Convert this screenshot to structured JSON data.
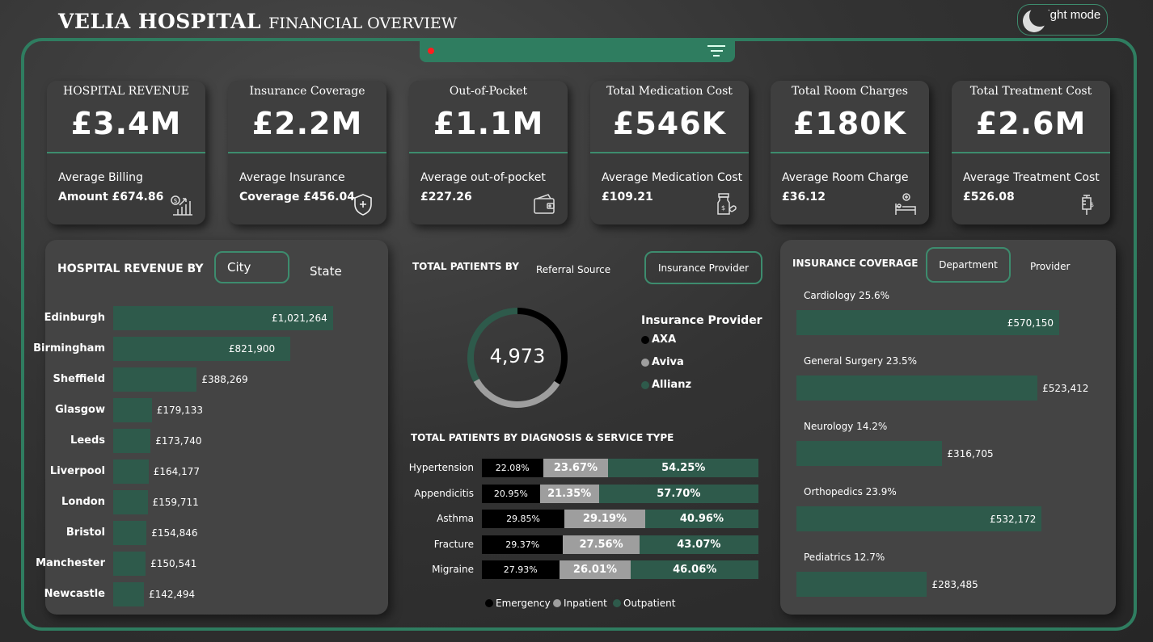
{
  "header": {
    "title_main": "VELIA HOSPITAL",
    "title_sub": "FINANCIAL OVERVIEW",
    "mode_label": "Light mode"
  },
  "colors": {
    "accent": "#2f7d60",
    "bar": "#2e5a4b",
    "emergency": "#000000",
    "inpatient": "#9e9e9e",
    "outpatient": "#2e5a4b"
  },
  "kpis": [
    {
      "label": "HOSPITAL REVENUE",
      "value": "£3.4M",
      "sub1": "Average Billing",
      "sub2": "Amount £674.86",
      "icon": "revenue-growth-icon"
    },
    {
      "label": "Insurance Coverage",
      "value": "£2.2M",
      "sub1": "Average Insurance",
      "sub2": "Coverage £456.04",
      "icon": "shield-plus-icon"
    },
    {
      "label": "Out-of-Pocket",
      "value": "£1.1M",
      "sub1": "Average out-of-pocket",
      "sub2": "£227.26",
      "icon": "wallet-icon"
    },
    {
      "label": "Total Medication Cost",
      "value": "£546K",
      "sub1": "Average Medication Cost",
      "sub2": "£109.21",
      "icon": "medicine-bottle-icon"
    },
    {
      "label": "Total Room Charges",
      "value": "£180K",
      "sub1": "Average Room Charge",
      "sub2": "£36.12",
      "icon": "hospital-bed-icon"
    },
    {
      "label": "Total Treatment Cost",
      "value": "£2.6M",
      "sub1": "Average Treatment Cost",
      "sub2": "£526.08",
      "icon": "syringe-icon"
    }
  ],
  "revenue": {
    "title": "HOSPITAL REVENUE BY",
    "toggle_active": "City",
    "toggle_other": "State"
  },
  "patients": {
    "title": "TOTAL PATIENTS BY",
    "toggle_other": "Referral Source",
    "toggle_active": "Insurance Provider",
    "total": "4,973",
    "legend_title": "Insurance Provider",
    "legend": [
      "AXA",
      "Aviva",
      "Allianz"
    ]
  },
  "diagnosis": {
    "title": "TOTAL PATIENTS BY DIAGNOSIS & SERVICE TYPE",
    "legend": [
      "Emergency",
      "Inpatient",
      "Outpatient"
    ]
  },
  "insurance": {
    "title": "INSURANCE COVERAGE",
    "toggle_active": "Department",
    "toggle_other": "Provider"
  },
  "chart_data": [
    {
      "type": "bar",
      "title": "HOSPITAL REVENUE BY City",
      "categories": [
        "Edinburgh",
        "Birmingham",
        "Sheffield",
        "Glasgow",
        "Leeds",
        "Liverpool",
        "London",
        "Bristol",
        "Manchester",
        "Newcastle"
      ],
      "values": [
        1021264,
        821900,
        388269,
        179133,
        173740,
        164177,
        159711,
        154846,
        150541,
        142494
      ],
      "labels": [
        "£1,021,264",
        "£821,900",
        "£388,269",
        "£179,133",
        "£173,740",
        "£164,177",
        "£159,711",
        "£154,846",
        "£150,541",
        "£142,494"
      ]
    },
    {
      "type": "pie",
      "title": "TOTAL PATIENTS BY Insurance Provider",
      "total": 4973,
      "categories": [
        "AXA",
        "Aviva",
        "Allianz"
      ],
      "values": [
        34,
        33,
        33
      ]
    },
    {
      "type": "bar",
      "title": "TOTAL PATIENTS BY DIAGNOSIS & SERVICE TYPE",
      "categories": [
        "Hypertension",
        "Appendicitis",
        "Asthma",
        "Fracture",
        "Migraine"
      ],
      "series": [
        {
          "name": "Emergency",
          "values": [
            22.08,
            20.95,
            29.85,
            29.37,
            27.93
          ],
          "labels": [
            "22.08%",
            "20.95%",
            "29.85%",
            "29.37%",
            "27.93%"
          ]
        },
        {
          "name": "Inpatient",
          "values": [
            23.67,
            21.35,
            29.19,
            27.56,
            26.01
          ],
          "labels": [
            "23.67%",
            "21.35%",
            "29.19%",
            "27.56%",
            "26.01%"
          ]
        },
        {
          "name": "Outpatient",
          "values": [
            54.25,
            57.7,
            40.96,
            43.07,
            46.06
          ],
          "labels": [
            "54.25%",
            "57.70%",
            "40.96%",
            "43.07%",
            "46.06%"
          ]
        }
      ]
    },
    {
      "type": "bar",
      "title": "INSURANCE COVERAGE Department",
      "categories": [
        "Cardiology 25.6%",
        "General Surgery 23.5%",
        "Neurology 14.2%",
        "Orthopedics 23.9%",
        "Pediatrics 12.7%"
      ],
      "values": [
        570150,
        523412,
        316705,
        532172,
        283485
      ],
      "labels": [
        "£570,150",
        "£523,412",
        "£316,705",
        "£532,172",
        "£283,485"
      ]
    }
  ]
}
